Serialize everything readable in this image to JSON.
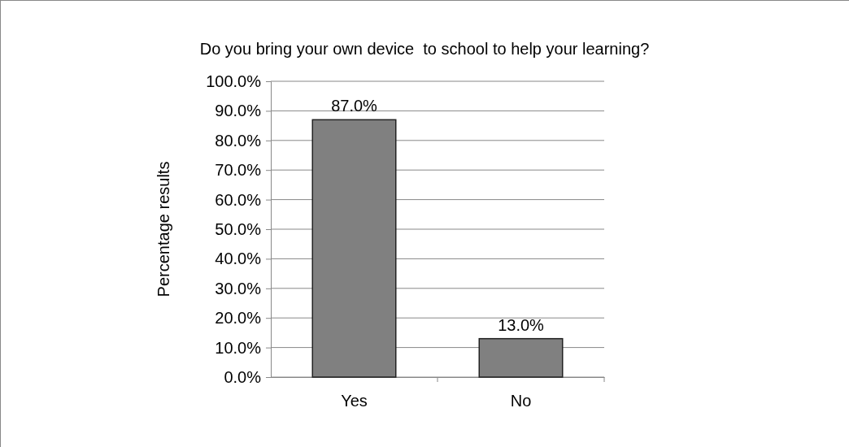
{
  "chart_data": {
    "type": "bar",
    "title": "Do you bring your own device  to school to help your learning?",
    "ylabel": "Percentage results",
    "categories": [
      "Yes",
      "No"
    ],
    "values": [
      87,
      13
    ],
    "value_labels": [
      "87.0%",
      "13.0%"
    ],
    "color": "#808080",
    "ylim": [
      0,
      100
    ],
    "yticks": [
      {
        "value": 0,
        "label": "0.0%"
      },
      {
        "value": 10,
        "label": "10.0%"
      },
      {
        "value": 20,
        "label": "20.0%"
      },
      {
        "value": 30,
        "label": "30.0%"
      },
      {
        "value": 40,
        "label": "40.0%"
      },
      {
        "value": 50,
        "label": "50.0%"
      },
      {
        "value": 60,
        "label": "60.0%"
      },
      {
        "value": 70,
        "label": "70.0%"
      },
      {
        "value": 80,
        "label": "80.0%"
      },
      {
        "value": 90,
        "label": "90.0%"
      },
      {
        "value": 100,
        "label": "100.0%"
      }
    ],
    "grid": "y"
  }
}
